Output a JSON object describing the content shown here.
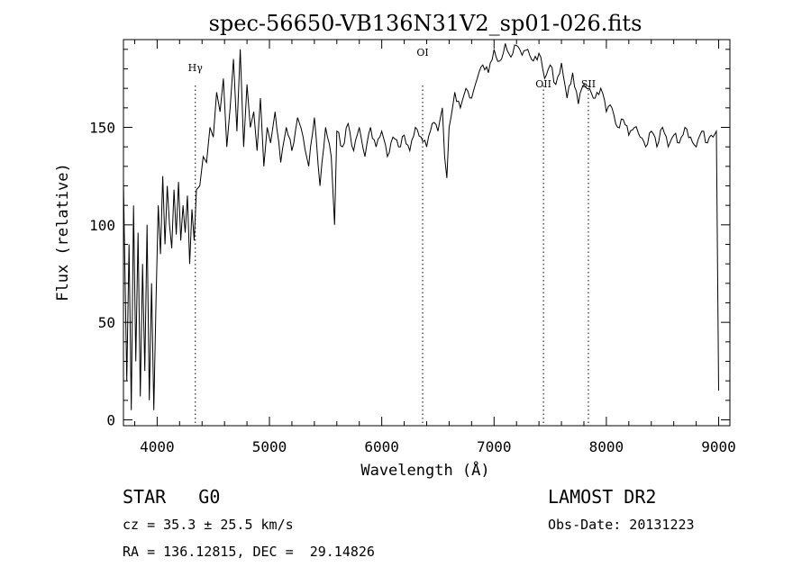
{
  "chart_data": {
    "type": "line",
    "title": "spec-56650-VB136N31V2_sp01-026.fits",
    "xlabel": "Wavelength (Å)",
    "ylabel": "Flux (relative)",
    "xlim": [
      3700,
      9100
    ],
    "ylim": [
      -3,
      195
    ],
    "x_ticks": [
      4000,
      5000,
      6000,
      7000,
      8000,
      9000
    ],
    "y_ticks": [
      0,
      50,
      100,
      150
    ],
    "grid": false,
    "line_color": "#000000",
    "lines": [
      {
        "label": "Hγ",
        "x": 4340
      },
      {
        "label": "OI",
        "x": 6364
      },
      {
        "label": "OII",
        "x": 7440
      },
      {
        "label": "SII",
        "x": 7840
      }
    ],
    "series": [
      {
        "x": [
          3700,
          3730,
          3750,
          3770,
          3790,
          3810,
          3830,
          3850,
          3870,
          3890,
          3910,
          3930,
          3950,
          3970,
          3990,
          4010,
          4030,
          4050,
          4070,
          4090,
          4110,
          4130,
          4150,
          4170,
          4190,
          4210,
          4230,
          4250,
          4270,
          4290,
          4310,
          4330,
          4350,
          4380,
          4410,
          4440,
          4470,
          4500,
          4530,
          4560,
          4590,
          4620,
          4650,
          4680,
          4710,
          4740,
          4770,
          4800,
          4830,
          4860,
          4890,
          4920,
          4950,
          4980,
          5010,
          5050,
          5100,
          5150,
          5200,
          5250,
          5300,
          5350,
          5400,
          5450,
          5500,
          5550,
          5580,
          5600,
          5650,
          5700,
          5750,
          5800,
          5850,
          5900,
          5950,
          6000,
          6050,
          6100,
          6150,
          6200,
          6250,
          6300,
          6350,
          6400,
          6450,
          6500,
          6540,
          6560,
          6580,
          6600,
          6650,
          6700,
          6750,
          6800,
          6850,
          6900,
          6950,
          7000,
          7050,
          7100,
          7150,
          7200,
          7250,
          7300,
          7350,
          7400,
          7450,
          7500,
          7550,
          7600,
          7650,
          7700,
          7750,
          7800,
          7850,
          7900,
          7950,
          8000,
          8050,
          8100,
          8150,
          8200,
          8250,
          8300,
          8350,
          8400,
          8450,
          8500,
          8550,
          8600,
          8650,
          8700,
          8750,
          8800,
          8850,
          8900,
          8950,
          8980,
          9000
        ],
        "y": [
          122,
          20,
          90,
          5,
          110,
          30,
          96,
          12,
          80,
          25,
          100,
          10,
          70,
          5,
          60,
          110,
          85,
          125,
          90,
          120,
          100,
          88,
          118,
          95,
          122,
          92,
          110,
          96,
          115,
          80,
          108,
          92,
          118,
          120,
          135,
          132,
          150,
          145,
          168,
          158,
          175,
          140,
          160,
          185,
          148,
          190,
          140,
          172,
          150,
          158,
          138,
          165,
          130,
          150,
          142,
          158,
          132,
          150,
          138,
          155,
          145,
          130,
          155,
          120,
          150,
          135,
          100,
          148,
          140,
          152,
          138,
          150,
          135,
          150,
          140,
          148,
          135,
          145,
          140,
          146,
          138,
          150,
          145,
          140,
          152,
          148,
          160,
          135,
          124,
          150,
          168,
          160,
          170,
          165,
          175,
          182,
          178,
          190,
          184,
          193,
          186,
          192,
          187,
          190,
          184,
          188,
          175,
          182,
          172,
          183,
          165,
          178,
          162,
          172,
          170,
          165,
          170,
          158,
          160,
          150,
          154,
          146,
          150,
          145,
          140,
          148,
          140,
          150,
          140,
          146,
          142,
          150,
          145,
          140,
          148,
          142,
          145,
          148,
          15
        ]
      }
    ]
  },
  "info": {
    "obj_type": "STAR   G0",
    "survey": "LAMOST DR2",
    "cz": "cz = 35.3 ± 25.5 km/s",
    "obs_date": "Obs-Date: 20131223",
    "radec": "RA = 136.12815, DEC =  29.14826"
  }
}
